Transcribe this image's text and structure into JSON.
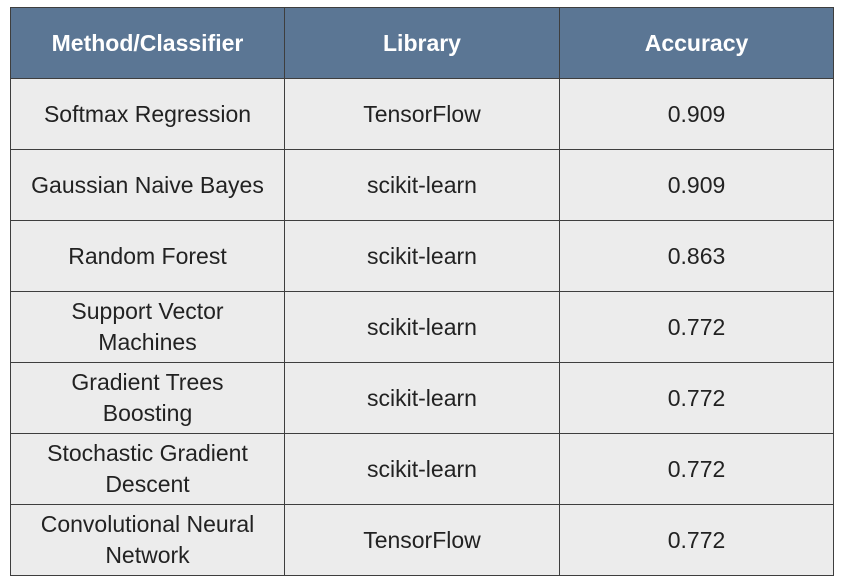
{
  "table": {
    "headers": [
      "Method/Classifier",
      "Library",
      "Accuracy"
    ],
    "rows": [
      [
        "Softmax Regression",
        "TensorFlow",
        "0.909"
      ],
      [
        "Gaussian Naive Bayes",
        "scikit-learn",
        "0.909"
      ],
      [
        "Random Forest",
        "scikit-learn",
        "0.863"
      ],
      [
        "Support Vector Machines",
        "scikit-learn",
        "0.772"
      ],
      [
        "Gradient Trees Boosting",
        "scikit-learn",
        "0.772"
      ],
      [
        "Stochastic Gradient Descent",
        "scikit-learn",
        "0.772"
      ],
      [
        "Convolutional Neural Network",
        "TensorFlow",
        "0.772"
      ]
    ]
  },
  "colors": {
    "header_bg": "#5b7694",
    "header_text": "#ffffff",
    "cell_bg": "#ececec",
    "border": "#3e3e3e"
  }
}
